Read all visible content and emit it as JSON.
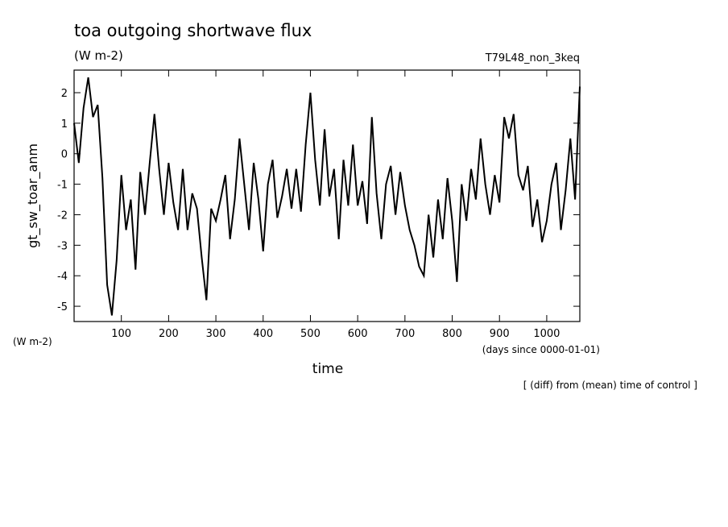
{
  "chart_data": {
    "type": "line",
    "title": "toa outgoing shortwave flux",
    "subtitle": "(W m-2)",
    "annotation": "T79L48_non_3keq",
    "y_label": "gt_sw_toar_anm",
    "y_unit": "(W m-2)",
    "x_label": "time",
    "x_unit": "(days since 0000-01-01)",
    "footnote": "[ (diff) from (mean) time of control ]",
    "x": [
      0,
      10,
      20,
      30,
      40,
      50,
      60,
      70,
      80,
      90,
      100,
      110,
      120,
      130,
      140,
      150,
      160,
      170,
      180,
      190,
      200,
      210,
      220,
      230,
      240,
      250,
      260,
      270,
      280,
      290,
      300,
      310,
      320,
      330,
      340,
      350,
      360,
      370,
      380,
      390,
      400,
      410,
      420,
      430,
      440,
      450,
      460,
      470,
      480,
      490,
      500,
      510,
      520,
      530,
      540,
      550,
      560,
      570,
      580,
      590,
      600,
      610,
      620,
      630,
      640,
      650,
      660,
      670,
      680,
      690,
      700,
      710,
      720,
      730,
      740,
      750,
      760,
      770,
      780,
      790,
      800,
      810,
      820,
      830,
      840,
      850,
      860,
      870,
      880,
      890,
      900,
      910,
      920,
      930,
      940,
      950,
      960,
      970,
      980,
      990,
      1000,
      1010,
      1020,
      1030,
      1040,
      1050,
      1060,
      1070
    ],
    "series": [
      {
        "name": "gt_sw_toar_anm",
        "color": "#000000",
        "values": [
          1,
          -0.3,
          1.5,
          2.5,
          1.2,
          1.6,
          -0.8,
          -4.3,
          -5.3,
          -3.5,
          -0.7,
          -2.5,
          -1.5,
          -3.8,
          -0.6,
          -2,
          -0.3,
          1.3,
          -0.5,
          -2,
          -0.3,
          -1.6,
          -2.5,
          -0.5,
          -2.5,
          -1.3,
          -1.8,
          -3.4,
          -4.8,
          -1.8,
          -2.2,
          -1.5,
          -0.7,
          -2.8,
          -1.5,
          0.5,
          -1,
          -2.5,
          -0.3,
          -1.5,
          -3.2,
          -1,
          -0.2,
          -2.1,
          -1.4,
          -0.5,
          -1.8,
          -0.5,
          -1.9,
          0.3,
          2,
          -0.2,
          -1.7,
          0.8,
          -1.4,
          -0.5,
          -2.8,
          -0.2,
          -1.7,
          0.3,
          -1.7,
          -0.9,
          -2.3,
          1.2,
          -1.3,
          -2.8,
          -1,
          -0.4,
          -2,
          -0.6,
          -1.7,
          -2.5,
          -3,
          -3.7,
          -4,
          -2,
          -3.4,
          -1.5,
          -2.8,
          -0.8,
          -2.2,
          -4.2,
          -1,
          -2.2,
          -0.5,
          -1.5,
          0.5,
          -1,
          -2,
          -0.7,
          -1.6,
          1.2,
          0.5,
          1.3,
          -0.7,
          -1.2,
          -0.4,
          -2.4,
          -1.5,
          -2.9,
          -2.2,
          -1,
          -0.3,
          -2.5,
          -1.2,
          0.5,
          -1.5,
          2.2
        ]
      }
    ],
    "xlim": [
      0,
      1070
    ],
    "xticks": [
      100,
      200,
      300,
      400,
      500,
      600,
      700,
      800,
      900,
      1000
    ],
    "ylim": [
      -5.5,
      2.74
    ],
    "yticks": [
      -5,
      -4,
      -3,
      -2,
      -1,
      0,
      1,
      2
    ]
  }
}
